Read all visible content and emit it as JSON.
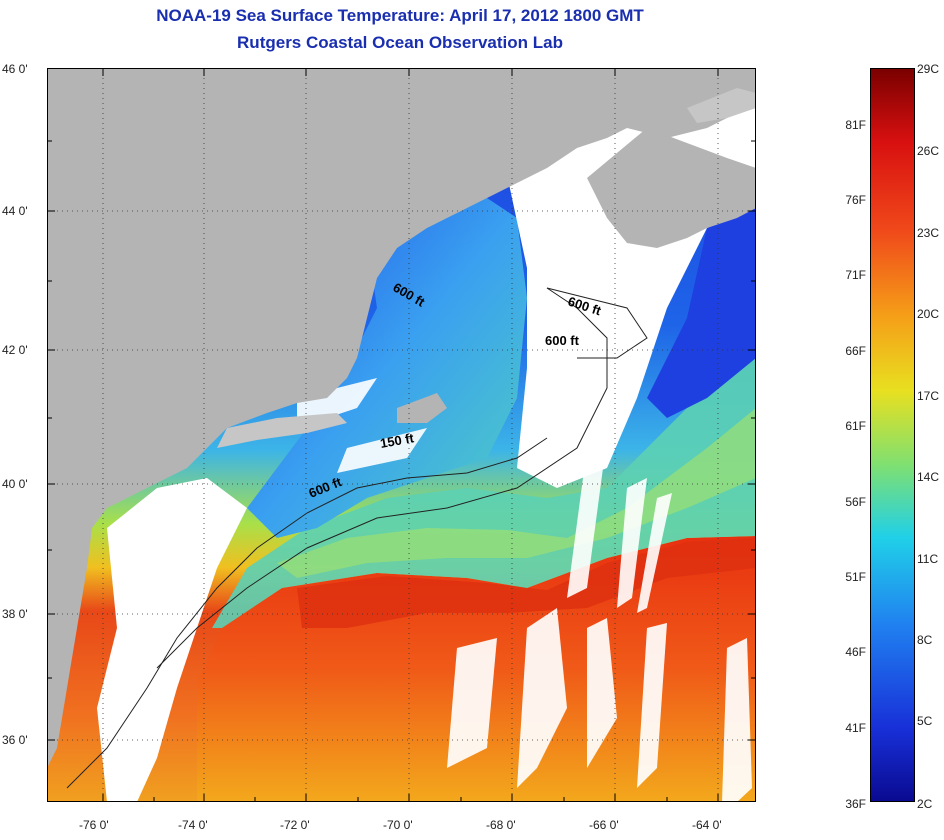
{
  "header": {
    "title": "NOAA-19 Sea Surface Temperature:  April 17, 2012 1800 GMT",
    "subtitle": "Rutgers Coastal Ocean Observation Lab"
  },
  "axes": {
    "lat_labels": [
      "46 0'",
      "44 0'",
      "42 0'",
      "40 0'",
      "38 0'",
      "36 0'"
    ],
    "lon_labels": [
      "-76 0'",
      "-74 0'",
      "-72 0'",
      "-70 0'",
      "-68 0'",
      "-66 0'",
      "-64 0'"
    ]
  },
  "contours": {
    "label_600_a": "600 ft",
    "label_600_b": "600 ft",
    "label_600_c": "600 ft",
    "label_150": "150 ft",
    "label_600_d": "600 ft"
  },
  "colorbar": {
    "fahrenheit": [
      "81F",
      "76F",
      "71F",
      "66F",
      "61F",
      "56F",
      "51F",
      "46F",
      "41F",
      "36F"
    ],
    "celsius": [
      "29C",
      "26C",
      "23C",
      "20C",
      "17C",
      "14C",
      "11C",
      "8C",
      "5C",
      "2C"
    ]
  },
  "colors": {
    "land": "#b4b4b4",
    "cloud": "#ffffff",
    "title": "#1a2fb0",
    "warm": "#e8401a",
    "cold": "#1e4fe0"
  }
}
